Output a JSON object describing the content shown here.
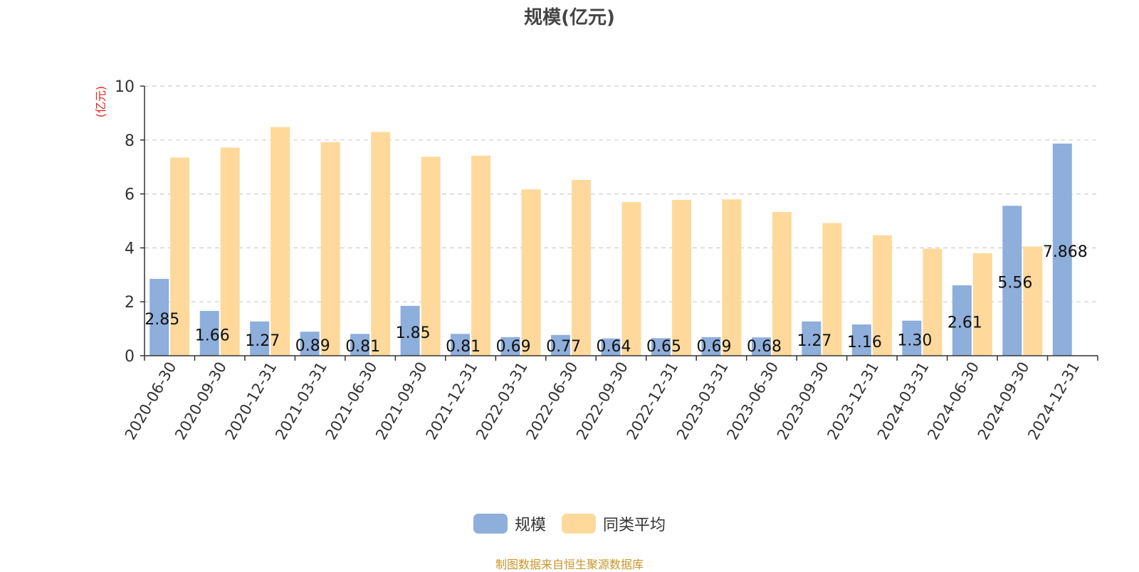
{
  "chart_data": {
    "type": "bar",
    "title": "规模(亿元)",
    "ylabel": "(亿元)",
    "ylim": [
      0,
      10
    ],
    "yticks": [
      0,
      2,
      4,
      6,
      8,
      10
    ],
    "grid": true,
    "legend_position": "bottom-center",
    "categories": [
      "2020-06-30",
      "2020-09-30",
      "2020-12-31",
      "2021-03-31",
      "2021-06-30",
      "2021-09-30",
      "2021-12-31",
      "2022-03-31",
      "2022-06-30",
      "2022-09-30",
      "2022-12-31",
      "2023-03-31",
      "2023-06-30",
      "2023-09-30",
      "2023-12-31",
      "2024-03-31",
      "2024-06-30",
      "2024-09-30",
      "2024-12-31"
    ],
    "series": [
      {
        "name": "规模",
        "color": "#8eaedb",
        "values": [
          2.85,
          1.66,
          1.27,
          0.89,
          0.81,
          1.85,
          0.81,
          0.69,
          0.77,
          0.64,
          0.65,
          0.69,
          0.68,
          1.27,
          1.16,
          1.3,
          2.61,
          5.56,
          7.868
        ],
        "labels": [
          "2.85",
          "1.66",
          "1.27",
          "0.89",
          "0.81",
          "1.85",
          "0.81",
          "0.69",
          "0.77",
          "0.64",
          "0.65",
          "0.69",
          "0.68",
          "1.27",
          "1.16",
          "1.30",
          "2.61",
          "5.56",
          "7.868"
        ]
      },
      {
        "name": "同类平均",
        "color": "#fed99b",
        "values": [
          7.35,
          7.72,
          8.48,
          7.92,
          8.3,
          7.38,
          7.42,
          6.17,
          6.52,
          5.7,
          5.78,
          5.8,
          5.33,
          4.92,
          4.47,
          3.97,
          3.8,
          4.05,
          null
        ]
      }
    ]
  },
  "source_note": "制图数据来自恒生聚源数据库",
  "colors": {
    "axis": "#333333",
    "grid": "#cccccc",
    "ylabel": "#e8231c",
    "source": "#c8952a"
  }
}
